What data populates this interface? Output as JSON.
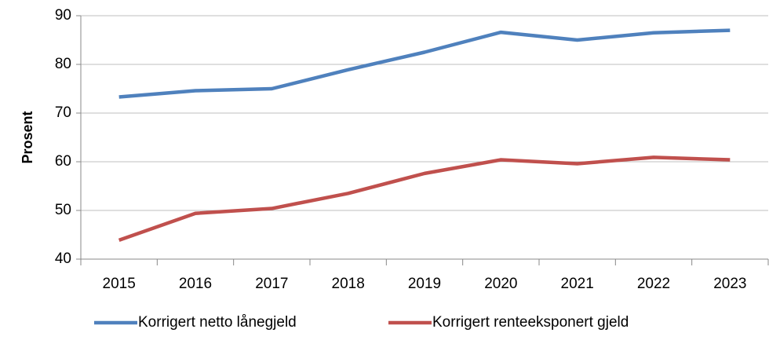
{
  "chart_data": {
    "type": "line",
    "y_label": "Prosent",
    "categories": [
      "2015",
      "2016",
      "2017",
      "2018",
      "2019",
      "2020",
      "2021",
      "2022",
      "2023"
    ],
    "series": [
      {
        "name": "Korrigert netto lånegjeld",
        "color": "#4f81bd",
        "values": [
          73.3,
          74.6,
          75.0,
          78.9,
          82.5,
          86.6,
          85.0,
          86.5,
          87.0
        ]
      },
      {
        "name": "Korrigert renteeksponert gjeld",
        "color": "#c0504d",
        "values": [
          43.9,
          49.4,
          50.4,
          53.5,
          57.6,
          60.4,
          59.6,
          60.9,
          60.4
        ]
      }
    ],
    "ylim": [
      40,
      90
    ],
    "yticks": [
      40,
      50,
      60,
      70,
      80,
      90
    ],
    "grid": true,
    "legend": "bottom"
  }
}
